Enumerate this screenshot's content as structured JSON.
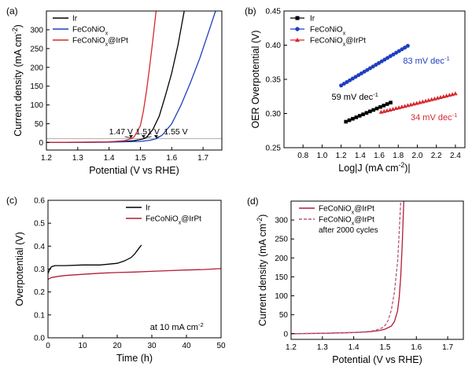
{
  "chart_data": [
    {
      "panel": "(a)",
      "type": "line",
      "xlabel": "Potential (V vs RHE)",
      "ylabel": "Current density (mA cm",
      "ylabel_sup": "-2",
      "ylabel_tail": ")",
      "xlim": [
        1.2,
        1.76
      ],
      "ylim": [
        -20,
        350
      ],
      "xticks": [
        1.2,
        1.3,
        1.4,
        1.5,
        1.6,
        1.7
      ],
      "xtick_labels": [
        "1.2",
        "1.3",
        "1.4",
        "1.5",
        "1.6",
        "1.7"
      ],
      "yticks": [
        0,
        50,
        100,
        150,
        200,
        250,
        300
      ],
      "ytick_labels": [
        "0",
        "50",
        "100",
        "150",
        "200",
        "250",
        "300"
      ],
      "legend_position": "top-left",
      "series": [
        {
          "name": "Ir",
          "color": "#000000",
          "x": [
            1.2,
            1.35,
            1.45,
            1.48,
            1.5,
            1.51,
            1.52,
            1.54,
            1.56,
            1.58,
            1.6,
            1.62,
            1.64
          ],
          "y": [
            0,
            1,
            3,
            5,
            8,
            10,
            14,
            35,
            70,
            125,
            185,
            260,
            350
          ]
        },
        {
          "name": "FeCoNiO",
          "name_sub": "x",
          "color": "#1f3fbf",
          "x": [
            1.2,
            1.4,
            1.5,
            1.53,
            1.55,
            1.57,
            1.6,
            1.63,
            1.66,
            1.69,
            1.72,
            1.74
          ],
          "y": [
            0,
            1,
            3,
            6,
            10,
            20,
            50,
            100,
            160,
            225,
            300,
            350
          ]
        },
        {
          "name": "FeCoNiO",
          "name_sub": "x",
          "name_tail": "@IrPt",
          "color": "#d6282f",
          "x": [
            1.2,
            1.4,
            1.45,
            1.47,
            1.48,
            1.5,
            1.51,
            1.52,
            1.53,
            1.54,
            1.55
          ],
          "y": [
            0,
            2,
            5,
            10,
            15,
            45,
            85,
            140,
            205,
            275,
            350
          ]
        }
      ],
      "reference_line": {
        "y": 10,
        "color": "#999999"
      },
      "annotations": [
        {
          "text": "1.47 V",
          "x": 1.47,
          "y": 10,
          "label_x": 1.4,
          "label_y": 22
        },
        {
          "text": "1.51 V",
          "x": 1.51,
          "y": 10,
          "label_x": 1.485,
          "label_y": 22
        },
        {
          "text": "1.55 V",
          "x": 1.55,
          "y": 10,
          "label_x": 1.575,
          "label_y": 22
        }
      ]
    },
    {
      "panel": "(b)",
      "type": "scatter",
      "xlabel": "Log|J (mA cm",
      "xlabel_sup": "-2",
      "xlabel_tail": ")|",
      "ylabel": "OER Overpotential (V)",
      "xlim": [
        0.6,
        2.5
      ],
      "ylim": [
        0.25,
        0.45
      ],
      "xticks": [
        0.8,
        1.0,
        1.2,
        1.4,
        1.6,
        1.8,
        2.0,
        2.2,
        2.4
      ],
      "xtick_labels": [
        "0.8",
        "1.0",
        "1.2",
        "1.4",
        "1.6",
        "1.8",
        "2.0",
        "2.2",
        "2.4"
      ],
      "yticks": [
        0.25,
        0.3,
        0.35,
        0.4,
        0.45
      ],
      "ytick_labels": [
        "0.25",
        "0.30",
        "0.35",
        "0.40",
        "0.45"
      ],
      "legend_position": "top-left",
      "series": [
        {
          "name": "Ir",
          "color": "#000000",
          "marker": "square",
          "x_start": 1.25,
          "x_end": 1.72,
          "y_start": 0.288,
          "y_end": 0.316,
          "count": 14
        },
        {
          "name": "FeCoNiO",
          "name_sub": "x",
          "color": "#1f3fbf",
          "marker": "circle",
          "x_start": 1.2,
          "x_end": 1.9,
          "y_start": 0.341,
          "y_end": 0.399,
          "count": 24
        },
        {
          "name": "FeCoNiO",
          "name_sub": "x",
          "name_tail": "@IrPt",
          "color": "#d6282f",
          "marker": "triangle",
          "x_start": 1.62,
          "x_end": 2.4,
          "y_start": 0.302,
          "y_end": 0.329,
          "count": 26
        }
      ],
      "annotations": [
        {
          "text": "83 mV dec",
          "sup": "-1",
          "color": "#1f3fbf",
          "x": 1.85,
          "y": 0.373
        },
        {
          "text": "59 mV dec",
          "sup": "-1",
          "color": "#000000",
          "x": 1.1,
          "y": 0.32
        },
        {
          "text": "34 mV dec",
          "sup": "-1",
          "color": "#d6282f",
          "x": 1.93,
          "y": 0.29
        }
      ]
    },
    {
      "panel": "(c)",
      "type": "line",
      "xlabel": "Time (h)",
      "ylabel": "Overpotential (V)",
      "xlim": [
        0,
        50
      ],
      "ylim": [
        0,
        0.6
      ],
      "xticks": [
        0,
        10,
        20,
        30,
        40,
        50
      ],
      "xtick_labels": [
        "0",
        "10",
        "20",
        "30",
        "40",
        "50"
      ],
      "yticks": [
        0.0,
        0.1,
        0.2,
        0.3,
        0.4,
        0.5,
        0.6
      ],
      "ytick_labels": [
        "0.0",
        "0.1",
        "0.2",
        "0.3",
        "0.4",
        "0.5",
        "0.6"
      ],
      "legend_position": "top-right",
      "series": [
        {
          "name": "Ir",
          "color": "#000000",
          "x": [
            0,
            0.5,
            1,
            2,
            5,
            10,
            15,
            20,
            22,
            24,
            25,
            26,
            27
          ],
          "y": [
            0.28,
            0.3,
            0.31,
            0.315,
            0.315,
            0.318,
            0.318,
            0.325,
            0.335,
            0.35,
            0.365,
            0.385,
            0.405
          ]
        },
        {
          "name": "FeCoNiO",
          "name_sub": "x",
          "name_tail": "@IrPt",
          "color": "#b31c36",
          "x": [
            0,
            1,
            3,
            5,
            10,
            15,
            20,
            25,
            30,
            35,
            40,
            45,
            50
          ],
          "y": [
            0.255,
            0.263,
            0.268,
            0.272,
            0.277,
            0.282,
            0.285,
            0.287,
            0.29,
            0.293,
            0.296,
            0.298,
            0.302
          ]
        }
      ],
      "annotations": [
        {
          "text": "at 10 mA cm",
          "sup": "-2",
          "x": 29.5,
          "y": 0.035
        }
      ]
    },
    {
      "panel": "(d)",
      "type": "line",
      "xlabel": "Potential (V vs RHE)",
      "ylabel": "Current density (mA cm",
      "ylabel_sup": "-2",
      "ylabel_tail": ")",
      "xlim": [
        1.2,
        1.75
      ],
      "ylim": [
        -15,
        350
      ],
      "xticks": [
        1.2,
        1.3,
        1.4,
        1.5,
        1.6,
        1.7
      ],
      "xtick_labels": [
        "1.2",
        "1.3",
        "1.4",
        "1.5",
        "1.6",
        "1.7"
      ],
      "yticks": [
        0,
        50,
        100,
        150,
        200,
        250,
        300
      ],
      "ytick_labels": [
        "0",
        "50",
        "100",
        "150",
        "200",
        "250",
        "300"
      ],
      "legend_position": "top-right",
      "series": [
        {
          "name": "FeCoNiO",
          "name_sub": "x",
          "name_tail": "@IrPt",
          "color": "#b31c36",
          "dash": false,
          "x": [
            1.2,
            1.3,
            1.4,
            1.45,
            1.48,
            1.5,
            1.52,
            1.53,
            1.54,
            1.545,
            1.55,
            1.555,
            1.56
          ],
          "y": [
            0,
            1,
            3,
            5,
            8,
            12,
            20,
            32,
            60,
            95,
            150,
            240,
            350
          ]
        },
        {
          "name": "FeCoNiO",
          "name_sub": "x",
          "name_tail": "@IrPt",
          "name_line2": "after 2000 cycles",
          "color": "#b45a7a",
          "dash": true,
          "x": [
            1.2,
            1.3,
            1.4,
            1.45,
            1.47,
            1.49,
            1.5,
            1.51,
            1.52,
            1.53,
            1.54,
            1.545,
            1.55
          ],
          "y": [
            0,
            1,
            3,
            6,
            9,
            15,
            22,
            35,
            62,
            110,
            190,
            265,
            350
          ]
        }
      ]
    }
  ]
}
